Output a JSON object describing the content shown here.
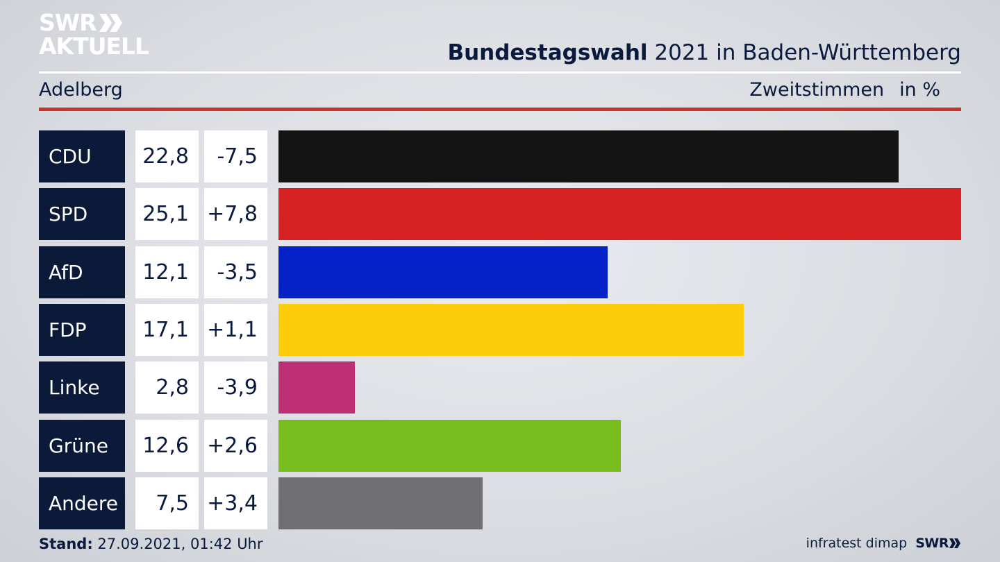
{
  "logo": {
    "line1": "SWR",
    "line2": "AKTUELL"
  },
  "header": {
    "title_bold": "Bundestagswahl",
    "title_rest": "2021 in Baden-Württemberg",
    "location": "Adelberg",
    "vote_type": "Zweitstimmen",
    "unit": "in %"
  },
  "chart_data": {
    "type": "bar",
    "orientation": "horizontal",
    "title": "Bundestagswahl 2021 in Baden-Württemberg",
    "subtitle": "Adelberg — Zweitstimmen in %",
    "categories": [
      "CDU",
      "SPD",
      "AfD",
      "FDP",
      "Linke",
      "Grüne",
      "Andere"
    ],
    "values": [
      22.8,
      25.1,
      12.1,
      17.1,
      2.8,
      12.6,
      7.5
    ],
    "value_labels": [
      "22,8",
      "25,1",
      "12,1",
      "17,1",
      "2,8",
      "12,6",
      "7,5"
    ],
    "diff_labels": [
      "-7,5",
      "+7,8",
      "-3,5",
      "+1,1",
      "-3,9",
      "+2,6",
      "+3,4"
    ],
    "colors": [
      "#141414",
      "#d52121",
      "#0521c8",
      "#fdcc0a",
      "#be3075",
      "#78bd1e",
      "#707072"
    ],
    "xlim": [
      0,
      25.1
    ]
  },
  "footer": {
    "stand_label": "Stand:",
    "stand_value": "27.09.2021, 01:42 Uhr",
    "source": "infratest dimap",
    "brand": "SWR"
  }
}
